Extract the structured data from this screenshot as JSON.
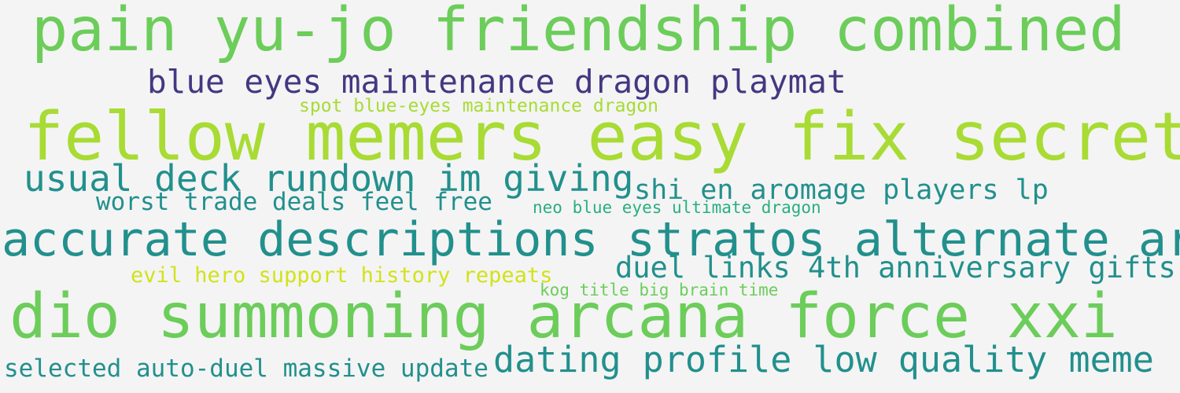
{
  "words": [
    {
      "text": "pain yu-jo friendship combined",
      "color": "#6ccd5a"
    },
    {
      "text": "blue eyes maintenance dragon playmat",
      "color": "#453781"
    },
    {
      "text": "spot blue-eyes maintenance dragon",
      "color": "#a8db34"
    },
    {
      "text": "fellow memers easy fix secret",
      "color": "#a8db34"
    },
    {
      "text": "usual deck rundown im giving",
      "color": "#22908d"
    },
    {
      "text": "shi en aromage players lp",
      "color": "#22908d"
    },
    {
      "text": "worst trade deals feel free",
      "color": "#22908d"
    },
    {
      "text": "neo blue eyes ultimate dragon",
      "color": "#29af7f"
    },
    {
      "text": "accurate descriptions stratos alternate art",
      "color": "#22908d"
    },
    {
      "text": "duel links 4th anniversary gifts",
      "color": "#22908d"
    },
    {
      "text": "evil hero support history repeats",
      "color": "#d2e21b"
    },
    {
      "text": "kog title big brain time",
      "color": "#6ccd5a"
    },
    {
      "text": "dio summoning arcana force xxi",
      "color": "#6ccd5a"
    },
    {
      "text": "dating profile low quality meme",
      "color": "#22908d"
    },
    {
      "text": "selected auto-duel massive update",
      "color": "#22908d"
    }
  ]
}
